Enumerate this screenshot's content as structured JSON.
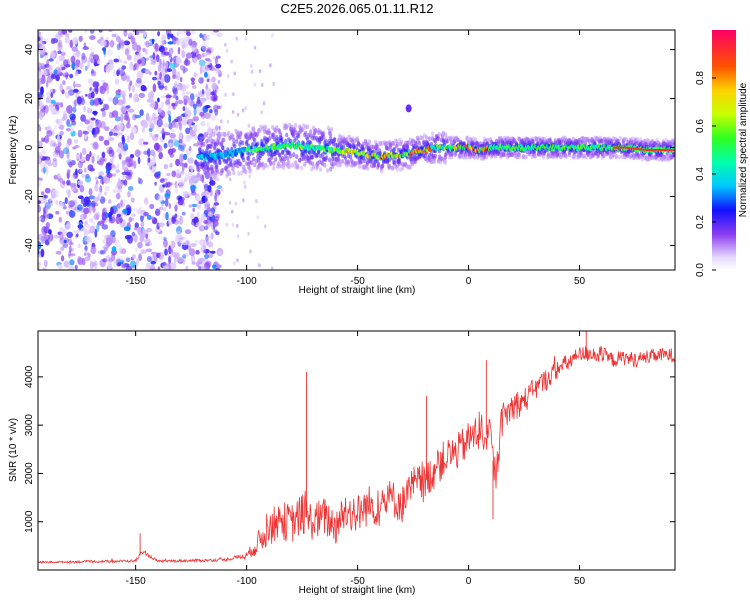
{
  "figure_title": "C2E5.2026.065.01.11.R12",
  "chart_data": [
    {
      "type": "heatmap",
      "title": "",
      "xlabel": "Height of straight line (km)",
      "ylabel": "Frequency (Hz)",
      "xlim": [
        -194,
        93
      ],
      "ylim": [
        -50,
        48
      ],
      "xticks": [
        -150,
        -100,
        -50,
        0,
        50
      ],
      "yticks": [
        -40,
        -20,
        0,
        20,
        40
      ],
      "ridge": {
        "description": "spectral ridge centre frequency vs height",
        "x": [
          -120,
          -110,
          -100,
          -90,
          -80,
          -70,
          -60,
          -50,
          -45,
          -40,
          -35,
          -30,
          -25,
          -20,
          -15,
          -10,
          -5,
          0,
          5,
          10,
          20,
          30,
          40,
          50,
          60,
          70,
          80,
          93
        ],
        "y": [
          -4,
          -3,
          -1,
          0,
          1,
          0,
          -1,
          -2,
          -3,
          -4,
          -3,
          -3,
          -2,
          -1,
          0,
          0,
          0,
          0,
          -1,
          0,
          0,
          0,
          0,
          0,
          0,
          0,
          -1,
          -1
        ]
      },
      "noise_band": {
        "x_from": -194,
        "x_to": -112,
        "intensity": 0.2
      },
      "spur": {
        "x": -27,
        "y": 16
      },
      "colorbar": {
        "label": "Normalized spectral amplitude",
        "ticks": [
          "0.0",
          "0.2",
          "0.4",
          "0.6",
          "0.8"
        ],
        "range": [
          0,
          1
        ]
      }
    },
    {
      "type": "line",
      "title": "",
      "xlabel": "Height of straight line (km)",
      "ylabel": "SNR (10 * v/v)",
      "xlim": [
        -194,
        93
      ],
      "ylim": [
        0,
        4950
      ],
      "xticks": [
        -150,
        -100,
        -50,
        0,
        50
      ],
      "yticks": [
        1000,
        2000,
        3000,
        4000
      ],
      "color": "#ee3333",
      "series": [
        {
          "name": "SNR",
          "x": [
            -194,
            -160,
            -150,
            -147,
            -140,
            -110,
            -100,
            -95,
            -90,
            -85,
            -80,
            -75,
            -70,
            -65,
            -60,
            -55,
            -50,
            -45,
            -40,
            -35,
            -30,
            -25,
            -20,
            -15,
            -10,
            -5,
            0,
            5,
            10,
            12,
            15,
            20,
            25,
            30,
            35,
            40,
            45,
            50,
            55,
            60,
            65,
            70,
            75,
            80,
            85,
            93
          ],
          "y": [
            160,
            180,
            190,
            380,
            180,
            210,
            300,
            550,
            850,
            1050,
            950,
            1150,
            1000,
            1100,
            900,
            1250,
            1150,
            1350,
            1300,
            1500,
            1350,
            1750,
            1800,
            2100,
            2350,
            2450,
            2700,
            2900,
            2750,
            1800,
            3100,
            3400,
            3500,
            3750,
            3950,
            4150,
            4300,
            4450,
            4500,
            4450,
            4350,
            4400,
            4350,
            4400,
            4450,
            4450
          ],
          "spread": [
            20,
            25,
            30,
            40,
            25,
            30,
            60,
            250,
            350,
            400,
            420,
            430,
            400,
            420,
            400,
            430,
            420,
            420,
            420,
            400,
            400,
            420,
            400,
            400,
            380,
            380,
            380,
            400,
            350,
            300,
            350,
            320,
            280,
            250,
            230,
            200,
            190,
            180,
            180,
            180,
            160,
            160,
            160,
            150,
            150,
            150
          ]
        }
      ],
      "annotated_peaks": [
        {
          "x": -148,
          "y": 760
        },
        {
          "x": -102,
          "y": 240
        },
        {
          "x": -73,
          "y": 4100
        },
        {
          "x": -19,
          "y": 3600
        },
        {
          "x": 8,
          "y": 4350
        },
        {
          "x": 11,
          "y": 1050
        },
        {
          "x": 53,
          "y": 4950
        }
      ]
    }
  ]
}
